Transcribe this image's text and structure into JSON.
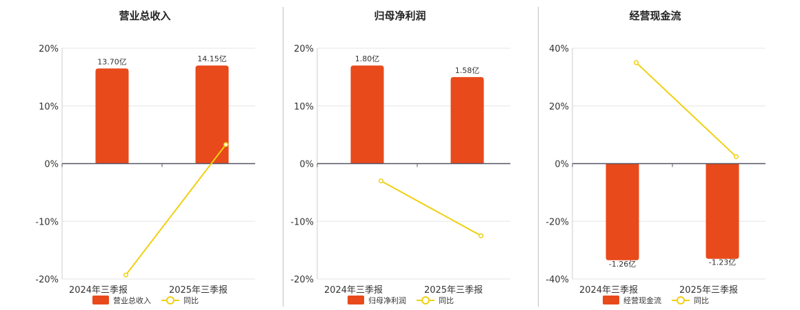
{
  "colors": {
    "bar": "#e84a1b",
    "line": "#f0d010",
    "grid": "#e6e6e6",
    "axis": "#555566"
  },
  "chart_data": [
    {
      "type": "bar",
      "title": "营业总收入",
      "categories": [
        "2024年三季报",
        "2025年三季报"
      ],
      "ylim": [
        -20,
        20
      ],
      "yticks": [
        20,
        10,
        0,
        -10,
        -20
      ],
      "tick_labels": [
        "20%",
        "10%",
        "0%",
        "-10%",
        "-20%"
      ],
      "series": [
        {
          "name": "营业总收入",
          "type": "bar",
          "values": [
            16.5,
            17.0
          ],
          "labels": [
            "13.70亿",
            "14.15亿"
          ]
        },
        {
          "name": "同比",
          "type": "line",
          "values": [
            -19.3,
            3.3
          ]
        }
      ],
      "legend": "bottom"
    },
    {
      "type": "bar",
      "title": "归母净利润",
      "categories": [
        "2024年三季报",
        "2025年三季报"
      ],
      "ylim": [
        -20,
        20
      ],
      "yticks": [
        20,
        10,
        0,
        -10,
        -20
      ],
      "tick_labels": [
        "20%",
        "10%",
        "0%",
        "-10%",
        "-20%"
      ],
      "series": [
        {
          "name": "归母净利润",
          "type": "bar",
          "values": [
            17.0,
            15.0
          ],
          "labels": [
            "1.80亿",
            "1.58亿"
          ]
        },
        {
          "name": "同比",
          "type": "line",
          "values": [
            -3.0,
            -12.5
          ]
        }
      ],
      "legend": "bottom"
    },
    {
      "type": "bar",
      "title": "经营现金流",
      "categories": [
        "2024年三季报",
        "2025年三季报"
      ],
      "ylim": [
        -40,
        40
      ],
      "yticks": [
        40,
        20,
        0,
        -20,
        -40
      ],
      "tick_labels": [
        "40%",
        "20%",
        "0%",
        "-20%",
        "-40%"
      ],
      "series": [
        {
          "name": "经营现金流",
          "type": "bar",
          "values": [
            -33.5,
            -33.0
          ],
          "labels": [
            "-1.26亿",
            "-1.23亿"
          ]
        },
        {
          "name": "同比",
          "type": "line",
          "values": [
            35.0,
            2.4
          ]
        }
      ],
      "legend": "bottom"
    }
  ]
}
